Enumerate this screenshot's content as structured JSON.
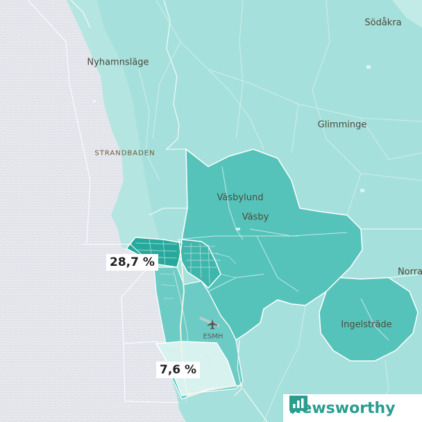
{
  "map": {
    "places": [
      {
        "id": "sodakra",
        "name": "Södåkra"
      },
      {
        "id": "nyhamnslage",
        "name": "Nyhamnsläge"
      },
      {
        "id": "glimminge",
        "name": "Glimminge"
      },
      {
        "id": "vasbylund",
        "name": "Väsbylund"
      },
      {
        "id": "vasby",
        "name": "Väsby"
      },
      {
        "id": "norra",
        "name": "Norra"
      },
      {
        "id": "ingelstrade",
        "name": "Ingelsträde"
      }
    ],
    "districts": [
      {
        "id": "strandbaden",
        "name": "STRANDBADEN"
      }
    ],
    "airport": {
      "code": "ESMH",
      "icon": "airplane-icon"
    },
    "value_labels": [
      {
        "id": "value-high",
        "text": "28,7 %"
      },
      {
        "id": "value-low",
        "text": "7,6 %"
      }
    ],
    "colors": {
      "sea": "#e6e8ee",
      "land_base": "#a6e0dc",
      "region_mid": "#56c3bb",
      "region_dark": "#26a99c",
      "region_light": "#d8f2ef",
      "boundary": "#ffffff"
    }
  },
  "brand": {
    "name": "Newsworthy",
    "icon": "newsworthy-logo-icon",
    "color": "#2a9d8f"
  }
}
